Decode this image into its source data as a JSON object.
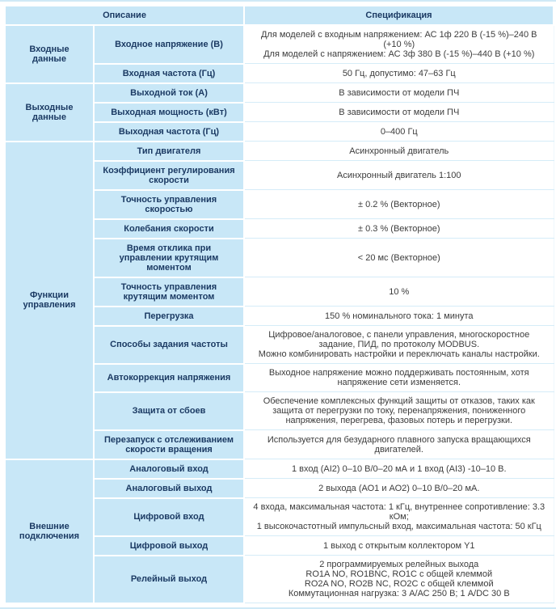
{
  "table": {
    "header": {
      "description": "Описание",
      "specification": "Спецификация"
    },
    "groups": [
      {
        "label": "Входные данные",
        "rows": [
          {
            "param": "Входное напряжение (В)",
            "spec": [
              "Для моделей с входным напряжением: АС 1ф 220 В (-15 %)–240 В (+10 %)",
              "Для моделей с напряжением: АС 3ф 380 В (-15 %)–440 В (+10 %)"
            ]
          },
          {
            "param": "Входная частота (Гц)",
            "spec": [
              "50 Гц, допустимо: 47–63 Гц"
            ]
          }
        ]
      },
      {
        "label": "Выходные данные",
        "rows": [
          {
            "param": "Выходной ток (А)",
            "spec": [
              "В зависимости от модели ПЧ"
            ]
          },
          {
            "param": "Выходная мощность (кВт)",
            "spec": [
              "В зависимости от модели ПЧ"
            ]
          },
          {
            "param": "Выходная частота (Гц)",
            "spec": [
              "0–400 Гц"
            ]
          }
        ]
      },
      {
        "label": "Функции управления",
        "rows": [
          {
            "param": "Тип двигателя",
            "spec": [
              "Асинхронный двигатель"
            ]
          },
          {
            "param": "Коэффициент регулирования скорости",
            "spec": [
              "Асинхронный двигатель 1:100"
            ]
          },
          {
            "param": "Точность управления скоростью",
            "spec": [
              "± 0.2 % (Векторное)"
            ]
          },
          {
            "param": "Колебания скорости",
            "spec": [
              "± 0.3 % (Векторное)"
            ]
          },
          {
            "param": "Время отклика при управлении крутящим моментом",
            "spec": [
              "< 20 мс (Векторное)"
            ]
          },
          {
            "param": "Точность управления крутящим моментом",
            "spec": [
              "10 %"
            ]
          },
          {
            "param": "Перегрузка",
            "spec": [
              "150 % номинального тока: 1 минута"
            ]
          },
          {
            "param": "Способы задания частоты",
            "spec": [
              "Цифровое/аналоговое, с панели управления, многоскоростное задание, ПИД, по протоколу MODBUS.",
              "Можно комбинировать настройки и переключать каналы настройки."
            ]
          },
          {
            "param": "Автокоррекция напряжения",
            "spec": [
              "Выходное напряжение можно поддерживать постоянным, хотя напряжение сети изменяется."
            ]
          },
          {
            "param": "Защита от сбоев",
            "spec": [
              "Обеспечение комплексных функций защиты от отказов, таких как защита от перегрузки по току, перенапряжения, пониженного напряжения, перегрева, фазовых потерь и перегрузки."
            ]
          },
          {
            "param": "Перезапуск с отслеживанием скорости вращения",
            "spec": [
              "Используется для безударного плавного запуска вращающихся двигателей."
            ]
          }
        ]
      },
      {
        "label": "Внешние подключения",
        "rows": [
          {
            "param": "Аналоговый вход",
            "spec": [
              "1 вход (AI2) 0–10 В/0–20 мА и 1 вход (AI3) -10–10 В."
            ]
          },
          {
            "param": "Аналоговый выход",
            "spec": [
              "2 выхода (АО1 и АО2) 0–10 В/0–20 мА."
            ]
          },
          {
            "param": "Цифровой вход",
            "spec": [
              "4 входа, максимальная частота: 1 кГц, внутреннее сопротивление: 3.3 кОм;",
              "1 высокочастотный импульсный вход, максимальная частота: 50 кГц"
            ]
          },
          {
            "param": "Цифровой выход",
            "spec": [
              "1 выход с открытым коллектором Y1"
            ]
          },
          {
            "param": "Релейный выход",
            "spec": [
              "2 программируемых релейных выхода",
              "RO1A NO, RO1BNC, RO1C с общей клеммой",
              "RO2A NO, RO2B NC, RO2C с общей клеммой",
              "Коммутационная нагрузка: 3 А/АС 250 В; 1 А/DC 30 В"
            ]
          }
        ]
      }
    ]
  },
  "colors": {
    "cell_blue": "#c8e7f7",
    "heading_text": "#1b3a63",
    "spec_text": "#3c3c3c",
    "row_divider": "#d5ecf8",
    "background": "#ffffff"
  }
}
